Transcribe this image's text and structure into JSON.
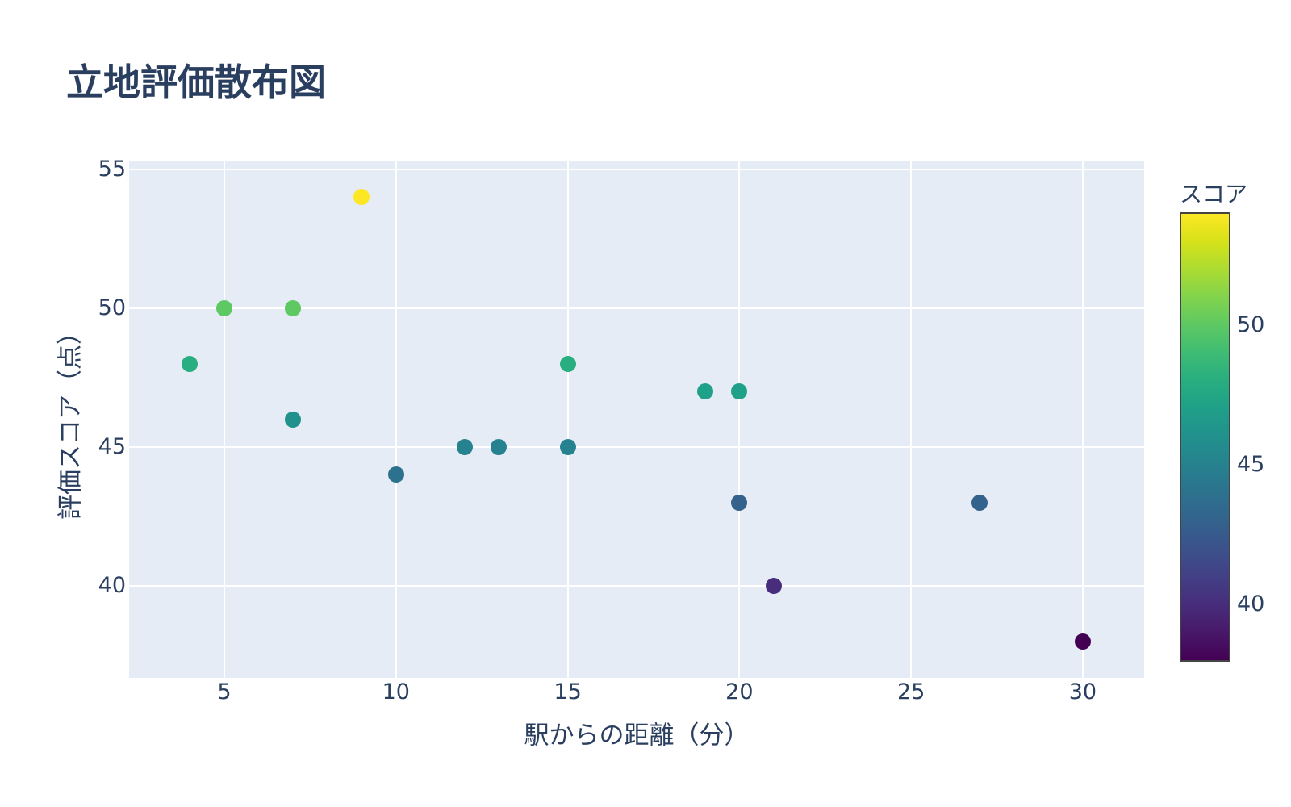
{
  "title": "立地評価散布図",
  "chart_data": {
    "type": "scatter",
    "title": "立地評価散布図",
    "xlabel": "駅からの距離（分）",
    "ylabel": "評価スコア（点）",
    "colorbar_title": "スコア",
    "grid": true,
    "legend_position": "colorbar-right",
    "x_range": [
      2.227,
      31.787
    ],
    "y_range": [
      36.686,
      55.291
    ],
    "x_ticks": [
      5,
      10,
      15,
      20,
      25,
      30
    ],
    "y_ticks": [
      40,
      45,
      50,
      55
    ],
    "color_range": [
      38,
      54
    ],
    "colorbar_ticks": [
      40,
      45,
      50
    ],
    "points": [
      {
        "x": 4,
        "y": 48,
        "score": 48,
        "color": "#28ae80"
      },
      {
        "x": 5,
        "y": 50,
        "score": 50,
        "color": "#5ec962"
      },
      {
        "x": 7,
        "y": 50,
        "score": 50,
        "color": "#5ec962"
      },
      {
        "x": 7,
        "y": 46,
        "score": 46,
        "color": "#21918c"
      },
      {
        "x": 9,
        "y": 54,
        "score": 54,
        "color": "#fde725"
      },
      {
        "x": 10,
        "y": 44,
        "score": 44,
        "color": "#2c728e"
      },
      {
        "x": 12,
        "y": 45,
        "score": 45,
        "color": "#26828e"
      },
      {
        "x": 13,
        "y": 45,
        "score": 45,
        "color": "#26828e"
      },
      {
        "x": 15,
        "y": 48,
        "score": 48,
        "color": "#28ae80"
      },
      {
        "x": 15,
        "y": 45,
        "score": 45,
        "color": "#26828e"
      },
      {
        "x": 19,
        "y": 47,
        "score": 47,
        "color": "#1fa088"
      },
      {
        "x": 20,
        "y": 47,
        "score": 47,
        "color": "#1fa088"
      },
      {
        "x": 20,
        "y": 43,
        "score": 43,
        "color": "#33638d"
      },
      {
        "x": 21,
        "y": 40,
        "score": 40,
        "color": "#472d7b"
      },
      {
        "x": 27,
        "y": 43,
        "score": 43,
        "color": "#33638d"
      },
      {
        "x": 30,
        "y": 38,
        "score": 38,
        "color": "#440154"
      }
    ],
    "colorbar_gradient": [
      [
        "#440154",
        0
      ],
      [
        "#48186a",
        6.3
      ],
      [
        "#472d7b",
        12.5
      ],
      [
        "#424086",
        18.8
      ],
      [
        "#3b528b",
        25.1
      ],
      [
        "#33638d",
        31.4
      ],
      [
        "#2c728e",
        37.6
      ],
      [
        "#26828e",
        43.9
      ],
      [
        "#21918c",
        50.2
      ],
      [
        "#1fa088",
        56.5
      ],
      [
        "#28ae80",
        62.7
      ],
      [
        "#3fbc73",
        69.0
      ],
      [
        "#5ec962",
        75.3
      ],
      [
        "#84d44b",
        81.6
      ],
      [
        "#addc30",
        87.8
      ],
      [
        "#d8e219",
        94.1
      ],
      [
        "#fde725",
        100
      ]
    ],
    "colors": {
      "text": "#2a3f5f",
      "plot_background": "#e5ecf6",
      "gridline": "#ffffff",
      "colorbar_outline": "#444444",
      "page_background": "#ffffff"
    }
  }
}
